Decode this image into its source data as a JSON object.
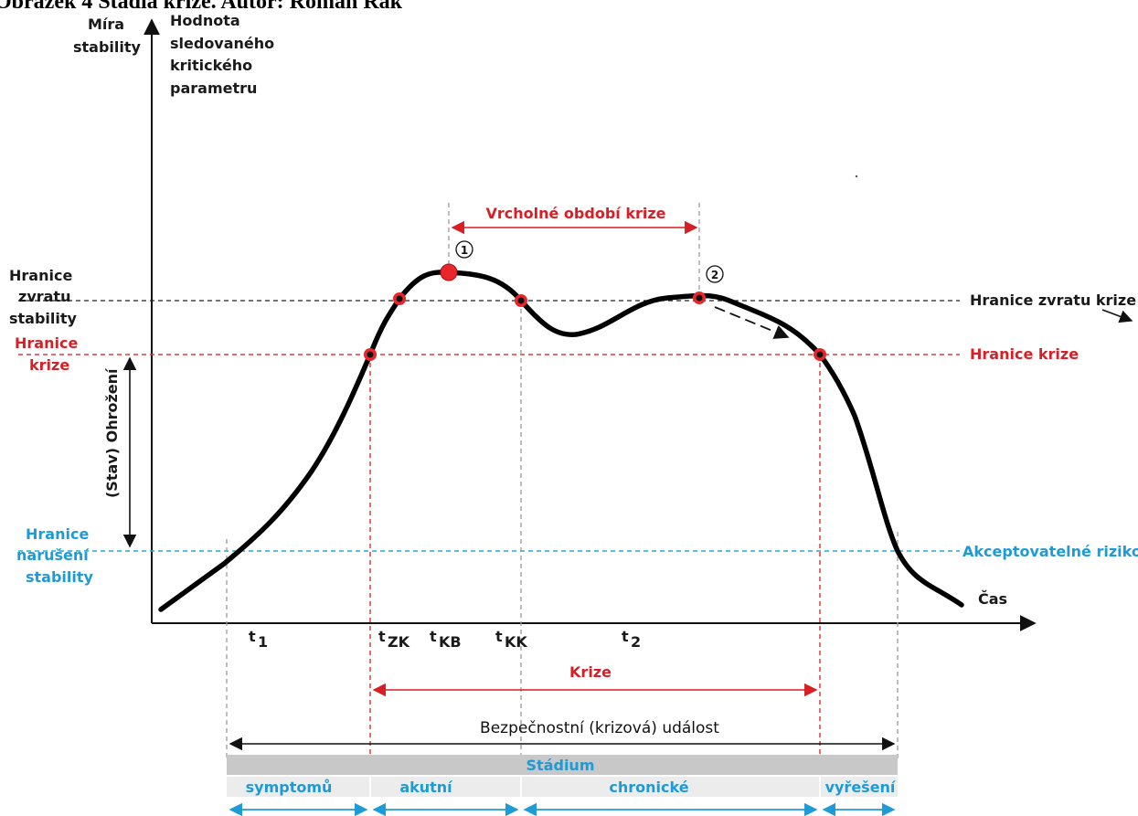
{
  "caption": "Obrázek 4 Stadia krize. Autor: Roman Rak",
  "y_axis": {
    "label_line1": "Míra",
    "label_line2": "stability",
    "sublabel": [
      "Hodnota",
      "sledovaného",
      "kritického",
      "parametru"
    ]
  },
  "x_axis": {
    "label": "Čas"
  },
  "left_labels": {
    "hranice_zvratu": [
      "Hranice",
      "zvratu",
      "stability"
    ],
    "hranice_krize": [
      "Hranice",
      "krize"
    ],
    "hranice_naruseni": [
      "Hranice",
      "narušení",
      "stability"
    ],
    "ohrozeni": "(Stav) Ohrožení"
  },
  "right_labels": {
    "zvrat": "Hranice zvratu krize",
    "krize": "Hranice krize",
    "riziko": "Akceptovatelné riziko"
  },
  "peak_period": "Vrcholné období krize",
  "markers": {
    "m1": "1",
    "m2": "2"
  },
  "time_labels": {
    "t1": {
      "main": "t",
      "sub": "1"
    },
    "tzk": {
      "main": "t",
      "sub": "ZK"
    },
    "tkb": {
      "main": "t",
      "sub": "KB"
    },
    "tkk": {
      "main": "t",
      "sub": "KK"
    },
    "t2": {
      "main": "t",
      "sub": "2"
    }
  },
  "krize_span": "Krize",
  "event_span": "Bezpečnostní (krizová) událost",
  "stadium": {
    "title": "Stádium",
    "phases": [
      "symptomů",
      "akutní",
      "chronické",
      "vyřešení"
    ]
  },
  "colors": {
    "red": "#d61f26",
    "blue": "#1e9ad6",
    "black": "#111111",
    "stadium_bar": "#c8c8c8",
    "phase_bar": "#ececec"
  }
}
